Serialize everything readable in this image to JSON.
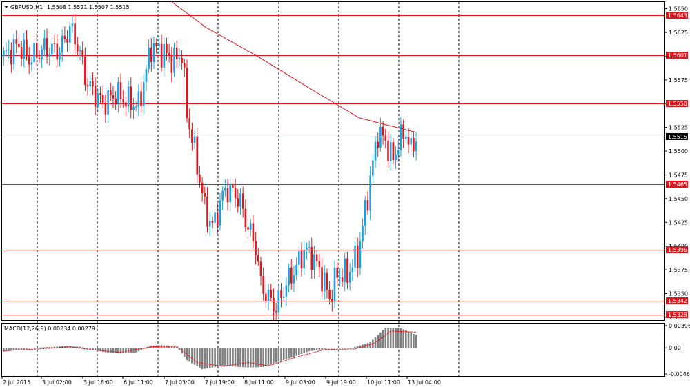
{
  "chart_data": {
    "type": "candlestick",
    "symbol": "GBPUSD,H1",
    "ohlc_label": "1.5508 1.5521 1.5507 1.5515",
    "colors": {
      "bull": "#1ba1e2",
      "bear": "#e3141b",
      "level": "#e3141b",
      "ma": "#e3141b",
      "grid": "#000000",
      "current": "#6e7b8b"
    },
    "price_axis": {
      "min": 1.5322,
      "max": 1.5657,
      "ticks": [
        "1.5650",
        "1.5625",
        "1.5600",
        "1.5575",
        "1.5550",
        "1.5525",
        "1.5500",
        "1.5475",
        "1.5450",
        "1.5425",
        "1.5400",
        "1.5375",
        "1.5350",
        "1.5325"
      ]
    },
    "levels": [
      {
        "value": 1.5643,
        "label": "1.5643"
      },
      {
        "value": 1.5601,
        "label": "1.5601"
      },
      {
        "value": 1.555,
        "label": "1.5550"
      },
      {
        "value": 1.5465,
        "label": "1.5465"
      },
      {
        "value": 1.5396,
        "label": "1.5396"
      },
      {
        "value": 1.5342,
        "label": "1.5342"
      },
      {
        "value": 1.5328,
        "label": "1.5328"
      }
    ],
    "current_price": {
      "value": 1.5515,
      "label": "1.5515"
    },
    "time_labels": [
      "2 Jul 2015",
      "3 Jul 02:00",
      "3 Jul 18:00",
      "6 Jul 11:00",
      "7 Jul 03:00",
      "7 Jul 19:00",
      "8 Jul 11:00",
      "9 Jul 03:00",
      "9 Jul 19:00",
      "10 Jul 11:00",
      "13 Jul 04:00"
    ],
    "session_separators": [
      0.05,
      0.22,
      0.38,
      0.52,
      0.67,
      0.82,
      0.99,
      1.1
    ],
    "anchors": [
      [
        0,
        1.56
      ],
      [
        6,
        1.5612
      ],
      [
        10,
        1.5597
      ],
      [
        16,
        1.5608
      ],
      [
        22,
        1.5606
      ],
      [
        26,
        1.563
      ],
      [
        29,
        1.5612
      ],
      [
        33,
        1.557
      ],
      [
        39,
        1.555
      ],
      [
        44,
        1.556
      ],
      [
        49,
        1.5552
      ],
      [
        53,
        1.5548
      ],
      [
        58,
        1.561
      ],
      [
        62,
        1.5605
      ],
      [
        67,
        1.5595
      ],
      [
        70,
        1.5603
      ],
      [
        72,
        1.554
      ],
      [
        75,
        1.55
      ],
      [
        79,
        1.544
      ],
      [
        82,
        1.542
      ],
      [
        87,
        1.546
      ],
      [
        91,
        1.5455
      ],
      [
        93,
        1.5445
      ],
      [
        96,
        1.542
      ],
      [
        99,
        1.54
      ],
      [
        101,
        1.536
      ],
      [
        104,
        1.5345
      ],
      [
        107,
        1.5335
      ],
      [
        111,
        1.536
      ],
      [
        115,
        1.5378
      ],
      [
        118,
        1.5395
      ],
      [
        121,
        1.539
      ],
      [
        124,
        1.5375
      ],
      [
        128,
        1.5345
      ],
      [
        131,
        1.537
      ],
      [
        135,
        1.537
      ],
      [
        139,
        1.539
      ],
      [
        141,
        1.542
      ],
      [
        144,
        1.547
      ],
      [
        147,
        1.552
      ],
      [
        150,
        1.551
      ],
      [
        153,
        1.549
      ],
      [
        155,
        1.551
      ],
      [
        158,
        1.552
      ],
      [
        160,
        1.55
      ],
      [
        162,
        1.5515
      ]
    ],
    "ma_line": [
      [
        66,
        1.5658
      ],
      [
        80,
        1.563
      ],
      [
        100,
        1.56
      ],
      [
        120,
        1.5567
      ],
      [
        140,
        1.5535
      ],
      [
        162,
        1.552
      ]
    ],
    "macd": {
      "label": "MACD(12,26,9) 0.00234 0.00279",
      "min": -0.00464,
      "max": 0.00396,
      "ticks": [
        "0.00396",
        "0.00",
        "-0.00464"
      ],
      "hist_anchors": [
        [
          0,
          -0.0007
        ],
        [
          12,
          0.0
        ],
        [
          24,
          0.0003
        ],
        [
          30,
          0.0002
        ],
        [
          40,
          -0.0008
        ],
        [
          46,
          -0.001
        ],
        [
          52,
          -0.0008
        ],
        [
          58,
          0.0004
        ],
        [
          62,
          0.0005
        ],
        [
          68,
          0.0002
        ],
        [
          72,
          -0.0022
        ],
        [
          78,
          -0.0038
        ],
        [
          86,
          -0.0032
        ],
        [
          96,
          -0.0035
        ],
        [
          102,
          -0.0034
        ],
        [
          110,
          -0.0022
        ],
        [
          120,
          -0.0006
        ],
        [
          128,
          -0.0001
        ],
        [
          136,
          -0.0001
        ],
        [
          144,
          0.001
        ],
        [
          150,
          0.0036
        ],
        [
          156,
          0.0035
        ],
        [
          162,
          0.0023
        ]
      ],
      "signal_anchors": [
        [
          0,
          -0.0005
        ],
        [
          14,
          -0.0002
        ],
        [
          26,
          0.0002
        ],
        [
          34,
          -0.0003
        ],
        [
          46,
          -0.0008
        ],
        [
          58,
          0.0002
        ],
        [
          68,
          0.0003
        ],
        [
          76,
          -0.0026
        ],
        [
          86,
          -0.0033
        ],
        [
          96,
          -0.0026
        ],
        [
          104,
          -0.0032
        ],
        [
          116,
          -0.0015
        ],
        [
          126,
          -0.0003
        ],
        [
          138,
          -0.0002
        ],
        [
          146,
          0.0009
        ],
        [
          152,
          0.003
        ],
        [
          162,
          0.0028
        ]
      ]
    }
  }
}
